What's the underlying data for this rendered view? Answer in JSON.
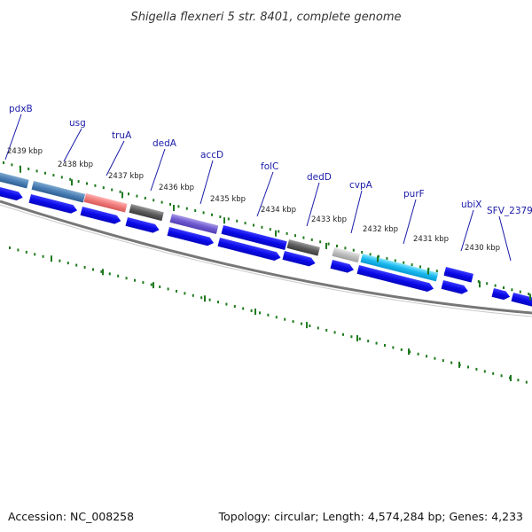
{
  "title": "Shigella flexneri 5 str. 8401, complete genome",
  "footer": {
    "accession": "Accession: NC_008258",
    "summary": "Topology: circular; Length: 4,574,284 bp; Genes: 4,233"
  },
  "colors": {
    "cds_blue": "#0a0ae8",
    "backbone": "#808080",
    "tick_green": "#1f7a1f",
    "label_line": "#1a1aa8"
  },
  "gene_labels": [
    "pdxB",
    "usg",
    "truA",
    "dedA",
    "accD",
    "folC",
    "dedD",
    "cvpA",
    "purF",
    "ubiX",
    "SFV_2379"
  ],
  "kbp_labels": [
    "2439 kbp",
    "2438 kbp",
    "2437 kbp",
    "2436 kbp",
    "2435 kbp",
    "2434 kbp",
    "2433 kbp",
    "2432 kbp",
    "2431 kbp",
    "2430 kbp"
  ]
}
